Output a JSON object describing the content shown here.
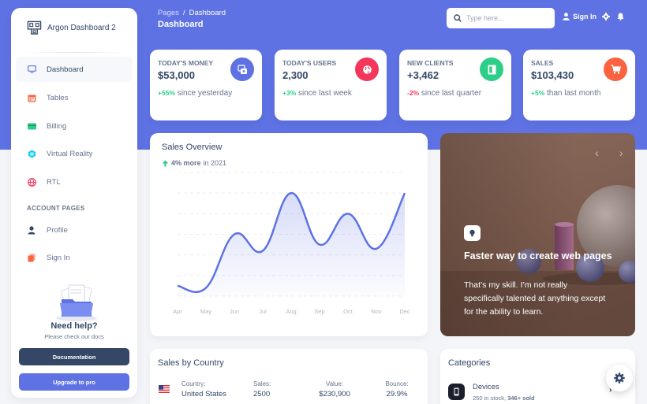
{
  "brand": {
    "name": "Argon Dashboard 2"
  },
  "sidebar": {
    "items": [
      {
        "label": "Dashboard",
        "icon": "tv-icon",
        "color": "#5e72e4"
      },
      {
        "label": "Tables",
        "icon": "calendar-icon",
        "color": "#fb6340"
      },
      {
        "label": "Billing",
        "icon": "credit-card-icon",
        "color": "#2dce89"
      },
      {
        "label": "Virtual Reality",
        "icon": "app-icon",
        "color": "#11cdef"
      },
      {
        "label": "RTL",
        "icon": "world-icon",
        "color": "#f5365c"
      }
    ],
    "section_title": "ACCOUNT PAGES",
    "account_items": [
      {
        "label": "Profile",
        "icon": "user-icon",
        "color": "#344767"
      },
      {
        "label": "Sign In",
        "icon": "copy-icon",
        "color": "#fb6340"
      }
    ],
    "help": {
      "title": "Need help?",
      "subtitle": "Please check our docs",
      "doc_button": "Documentation",
      "pro_button": "Upgrade to pro"
    }
  },
  "header": {
    "breadcrumb_parent": "Pages",
    "breadcrumb_current": "Dashboard",
    "title": "Dashboard",
    "search_placeholder": "Type here...",
    "signin_label": "Sign In"
  },
  "stats": [
    {
      "title": "TODAY'S MONEY",
      "value": "$53,000",
      "change": "+55%",
      "change_type": "pos",
      "desc": " since yesterday",
      "icon": "money-icon",
      "color": "#5e72e4"
    },
    {
      "title": "TODAY'S USERS",
      "value": "2,300",
      "change": "+3%",
      "change_type": "pos",
      "desc": " since last week",
      "icon": "world-icon",
      "color": "#f5365c"
    },
    {
      "title": "NEW CLIENTS",
      "value": "+3,462",
      "change": "-2%",
      "change_type": "neg",
      "desc": " since last quarter",
      "icon": "paper-icon",
      "color": "#2dce89"
    },
    {
      "title": "SALES",
      "value": "$103,430",
      "change": "+5%",
      "change_type": "pos",
      "desc": " than last month",
      "icon": "cart-icon",
      "color": "#fb6340"
    }
  ],
  "overview": {
    "title": "Sales Overview",
    "change": "4% more",
    "period": " in 2021"
  },
  "chart_data": {
    "type": "line",
    "categories": [
      "Apr",
      "May",
      "Jun",
      "Jul",
      "Aug",
      "Sep",
      "Oct",
      "Nov",
      "Dec"
    ],
    "series": [
      {
        "values": [
          50,
          40,
          300,
          220,
          500,
          250,
          400,
          230,
          500
        ]
      }
    ],
    "ylim": [
      0,
      600
    ],
    "grid": true,
    "color": "#5e72e4"
  },
  "carousel": {
    "title": "Faster way to create web pages",
    "text": "That’s my skill. I’m not really specifically talented at anything except for the ability to learn.",
    "prev": "‹",
    "next": "›"
  },
  "country": {
    "title": "Sales by Country",
    "row": {
      "country_label": "Country:",
      "country": "United States",
      "sales_label": "Sales:",
      "sales": "2500",
      "value_label": "Value:",
      "value": "$230,900",
      "bounce_label": "Bounce:",
      "bounce": "29.9%"
    }
  },
  "categories": {
    "title": "Categories",
    "item": {
      "name": "Devices",
      "stock": "250 in stock, ",
      "sold": "346+ sold",
      "chevron": "›"
    }
  }
}
